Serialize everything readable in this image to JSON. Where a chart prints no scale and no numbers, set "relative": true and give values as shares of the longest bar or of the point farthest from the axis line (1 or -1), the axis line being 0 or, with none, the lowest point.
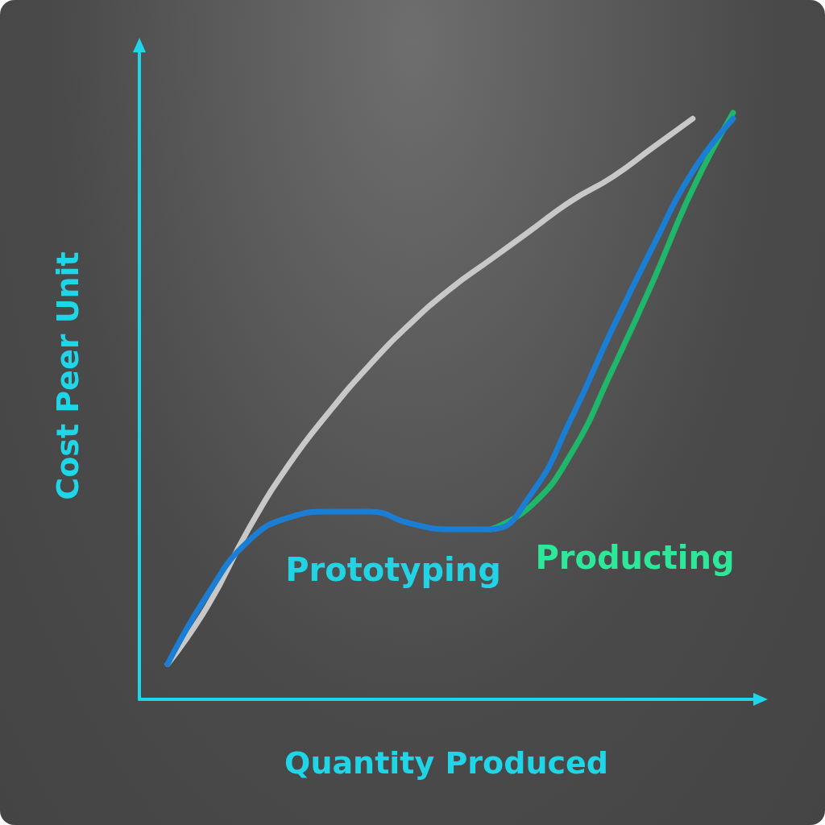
{
  "chart_data": {
    "type": "line",
    "relative": true,
    "xlabel": "Quantity Produced",
    "ylabel": "Cost Peer Unit",
    "marker": "none",
    "line_style": "solid",
    "categories": [
      null,
      null,
      null,
      null,
      null,
      null,
      null,
      null,
      null,
      null,
      null,
      null,
      null,
      null,
      null
    ],
    "series": [
      {
        "color": "#c8c8c8",
        "values": [
          0.06,
          0.16,
          0.29,
          0.4,
          0.49,
          0.57,
          0.64,
          0.7,
          0.75,
          0.8,
          0.85,
          0.89,
          0.94,
          0.99,
          null
        ]
      },
      {
        "name": "Producting",
        "color": "#1fb86a",
        "values": [
          null,
          null,
          null,
          null,
          null,
          null,
          null,
          null,
          0.29,
          0.33,
          0.42,
          0.56,
          0.71,
          0.87,
          1.0
        ]
      },
      {
        "name": "Prototyping",
        "color": "#1a7fd4",
        "values": [
          0.06,
          0.18,
          0.27,
          0.31,
          0.32,
          0.32,
          0.3,
          0.29,
          0.29,
          0.35,
          0.48,
          0.63,
          0.77,
          0.9,
          0.99
        ]
      }
    ]
  }
}
